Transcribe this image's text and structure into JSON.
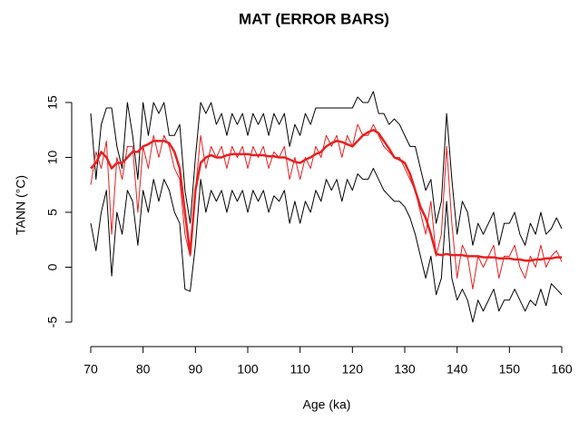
{
  "chart_data": {
    "type": "line",
    "title": "MAT (ERROR BARS)",
    "x_label": "Age (ka)",
    "y_label": "TANN (°C)",
    "xlim": [
      70,
      160
    ],
    "ylim": [
      -6.2,
      16.7
    ],
    "xticks": [
      70,
      80,
      90,
      100,
      110,
      120,
      130,
      140,
      150,
      160
    ],
    "yticks": [
      -5,
      0,
      5,
      10,
      15
    ],
    "x": [
      70,
      71,
      72,
      73,
      74,
      75,
      76,
      77,
      78,
      79,
      80,
      81,
      82,
      83,
      84,
      85,
      86,
      87,
      88,
      89,
      90,
      91,
      92,
      93,
      94,
      95,
      96,
      97,
      98,
      99,
      100,
      101,
      102,
      103,
      104,
      105,
      106,
      107,
      108,
      109,
      110,
      111,
      112,
      113,
      114,
      115,
      116,
      117,
      118,
      119,
      120,
      121,
      122,
      123,
      124,
      125,
      126,
      127,
      128,
      129,
      130,
      131,
      132,
      133,
      134,
      135,
      136,
      137,
      138,
      139,
      140,
      141,
      142,
      143,
      144,
      145,
      146,
      147,
      148,
      149,
      150,
      151,
      152,
      153,
      154,
      155,
      156,
      157,
      158,
      159,
      160
    ],
    "series": [
      {
        "color": "#000000",
        "width": 1,
        "values": [
          14,
          8,
          13,
          14.5,
          14.5,
          11,
          9,
          15,
          12,
          8,
          15,
          12,
          15,
          14,
          15,
          12,
          12,
          13,
          7,
          4,
          10,
          15,
          14,
          15,
          13,
          14,
          12,
          14,
          13,
          14,
          12,
          14,
          13,
          14,
          12,
          14,
          13,
          14,
          11,
          13,
          12,
          14,
          13,
          14.5,
          14.5,
          14.5,
          14.5,
          14.5,
          14.5,
          14.5,
          14.5,
          15.5,
          15,
          15,
          16,
          14,
          14,
          13,
          13.5,
          13,
          12,
          11,
          11,
          9,
          7,
          8,
          4,
          6,
          14,
          8,
          3,
          6,
          5,
          2,
          4,
          3,
          4,
          5,
          2,
          4,
          4,
          5,
          3,
          2,
          4,
          3,
          5,
          3,
          3.5,
          4.5,
          3.5
        ]
      },
      {
        "color": "#000000",
        "width": 1,
        "values": [
          4,
          1.5,
          5,
          7,
          -0.8,
          5,
          3,
          7,
          6,
          2,
          7,
          5,
          8,
          6,
          8,
          7,
          5,
          4,
          -2,
          -2.2,
          2,
          8,
          5,
          7,
          6,
          7,
          5,
          7,
          6,
          7,
          5,
          7,
          6,
          7,
          5,
          6.5,
          6,
          7,
          4,
          6,
          4,
          6,
          5,
          7,
          6,
          8,
          7,
          8,
          6,
          8,
          7,
          8.5,
          8,
          8,
          9,
          8,
          7,
          6.5,
          6,
          6,
          5.5,
          4.5,
          3,
          1,
          -1,
          1,
          -2.5,
          -1,
          6,
          -1,
          -3,
          -2,
          -3,
          -5,
          -3,
          -4,
          -3,
          -2,
          -4,
          -3,
          -3,
          -2,
          -3,
          -4,
          -3,
          -3.5,
          -2,
          -3.5,
          -1.5,
          -2,
          -2.5
        ]
      },
      {
        "color": "#e82020",
        "width": 1,
        "values": [
          7.5,
          10.5,
          9,
          11.5,
          3,
          10,
          8,
          11,
          11,
          5,
          11,
          9,
          12,
          10,
          12,
          11,
          9,
          8,
          3,
          1,
          7,
          12,
          9,
          11,
          10,
          11,
          9,
          11,
          10,
          11,
          9,
          11,
          10,
          11,
          9,
          10.5,
          10,
          11,
          8,
          10,
          8,
          10,
          9,
          11,
          10,
          12,
          11,
          12,
          10,
          12,
          11,
          13,
          12,
          12,
          13,
          12,
          11,
          10.5,
          10,
          10,
          9,
          8,
          7,
          5,
          3,
          6,
          1,
          3,
          11,
          4,
          -1,
          2,
          1,
          -2,
          1,
          0,
          1,
          2,
          -1,
          1,
          1,
          2,
          0,
          -1,
          1,
          0,
          2,
          0,
          1,
          1.5,
          0.5
        ]
      },
      {
        "color": "#e82020",
        "width": 2.5,
        "values": [
          9,
          9.5,
          10.5,
          10,
          9,
          9.5,
          9.5,
          10,
          10.5,
          10.5,
          11,
          11.2,
          11.5,
          11.5,
          11.5,
          11.3,
          10.5,
          9,
          5,
          1.2,
          7,
          9.5,
          10,
          10.2,
          10,
          10,
          10.2,
          10.3,
          10.3,
          10.3,
          10.3,
          10.2,
          10.2,
          10.2,
          10.1,
          10.1,
          10,
          10,
          9.8,
          9.6,
          9.5,
          9.8,
          10,
          10.3,
          10.5,
          11,
          11.3,
          11.5,
          11.4,
          11.2,
          11,
          11.5,
          12,
          12.3,
          12.5,
          12.2,
          11.5,
          10.8,
          10,
          9.8,
          9.5,
          8.5,
          7,
          5.5,
          4.5,
          3,
          1.2,
          1.1,
          1.2,
          1.1,
          1.1,
          1.1,
          1,
          1,
          1,
          0.9,
          0.9,
          0.9,
          0.8,
          0.8,
          0.8,
          0.7,
          0.7,
          0.6,
          0.6,
          0.7,
          0.7,
          0.8,
          0.8,
          0.9,
          0.9
        ]
      }
    ]
  }
}
